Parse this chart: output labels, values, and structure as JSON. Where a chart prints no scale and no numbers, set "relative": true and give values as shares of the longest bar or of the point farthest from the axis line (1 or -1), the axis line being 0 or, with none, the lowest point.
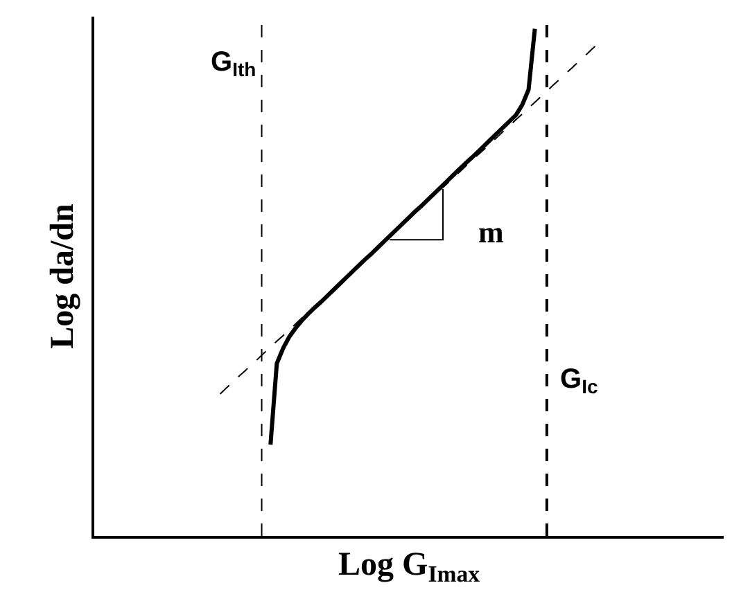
{
  "chart_data": {
    "type": "line",
    "relative": true,
    "xlabel": "Log G$_{Imax}$",
    "ylabel": "Log da/dn",
    "marker": "none",
    "categories": [
      null,
      null,
      null,
      null,
      null,
      null,
      null,
      null,
      null,
      null,
      null,
      null,
      null,
      null,
      null,
      null,
      null,
      null,
      null,
      null,
      null,
      null,
      null,
      null,
      null,
      null,
      null,
      null,
      null,
      null,
      null,
      null,
      null,
      null,
      null,
      null,
      null,
      null,
      null,
      null,
      null,
      null,
      null,
      null,
      null,
      null,
      null,
      null,
      null,
      null,
      null,
      null,
      null,
      null,
      null,
      null,
      null,
      null,
      null,
      null,
      null
    ],
    "series": [
      {
        "color": "#000000",
        "line_style": "solid",
        "values": [
          null,
          null,
          null,
          null,
          null,
          null,
          null,
          null,
          0.18,
          0.34,
          0.37,
          0.393,
          0.41,
          0.425,
          0.438,
          0.45,
          0.461,
          0.473,
          0.485,
          0.497,
          0.509,
          0.521,
          0.533,
          0.545,
          0.556,
          0.568,
          0.58,
          0.592,
          0.604,
          0.616,
          0.628,
          0.64,
          0.651,
          0.663,
          0.675,
          0.687,
          0.699,
          0.711,
          0.723,
          0.735,
          0.746,
          0.758,
          0.77,
          0.782,
          0.794,
          0.806,
          0.818,
          0.83,
          0.85,
          0.88,
          1.0,
          null,
          null,
          null,
          null,
          null,
          null,
          null,
          null,
          null,
          null
        ]
      },
      {
        "color": "#000000",
        "line_style": "dashed",
        "values": [
          0.28,
          0.292,
          0.303,
          0.315,
          0.326,
          0.338,
          0.349,
          0.361,
          0.372,
          0.384,
          0.395,
          0.407,
          0.418,
          0.43,
          0.441,
          0.453,
          0.464,
          0.476,
          0.487,
          0.499,
          0.51,
          0.522,
          0.533,
          0.545,
          0.556,
          0.568,
          0.579,
          0.591,
          0.602,
          0.614,
          0.625,
          0.637,
          0.648,
          0.66,
          0.671,
          0.683,
          0.694,
          0.706,
          0.717,
          0.729,
          0.74,
          0.752,
          0.763,
          0.775,
          0.786,
          0.798,
          0.809,
          0.821,
          0.832,
          0.844,
          0.855,
          0.867,
          0.878,
          0.89,
          0.901,
          0.913,
          0.924,
          0.936,
          0.947,
          0.959,
          0.97
        ]
      }
    ],
    "annotations": [
      "G$_{Ith}$",
      "G$_{Ic}$",
      "m"
    ]
  }
}
